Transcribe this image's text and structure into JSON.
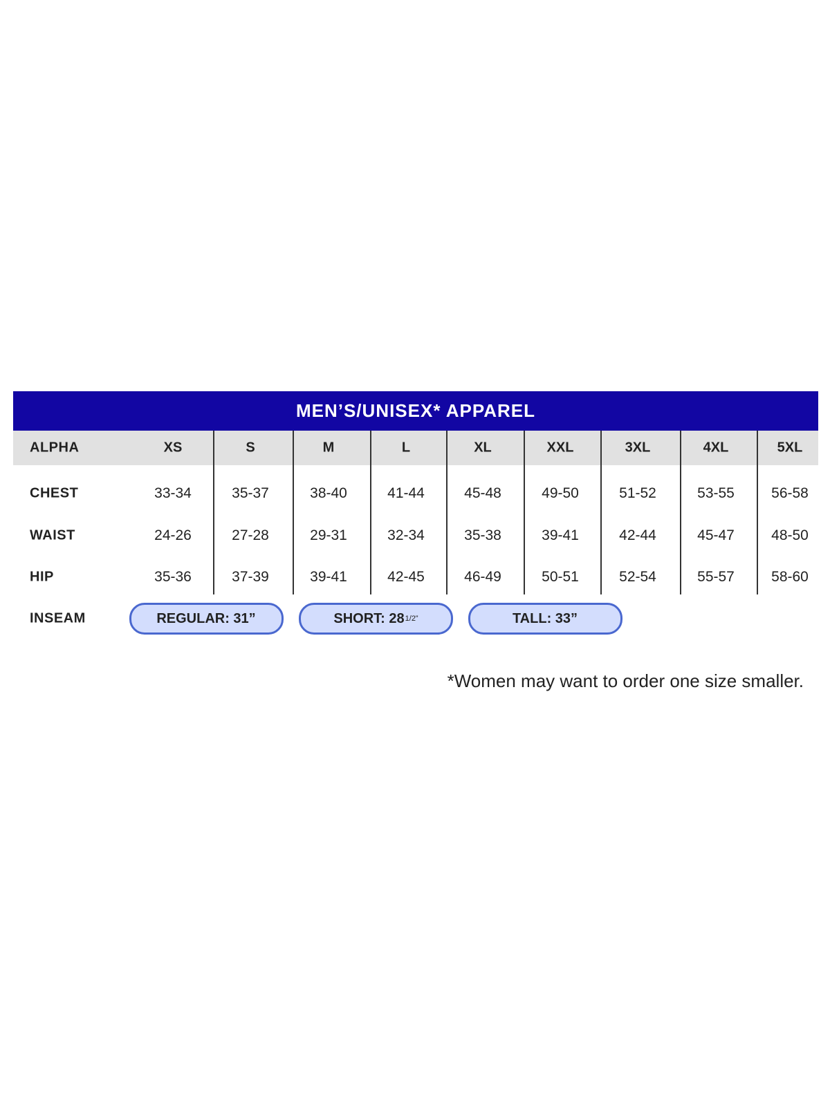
{
  "title": "MEN’S/UNISEX* APPAREL",
  "columns": [
    "XS",
    "S",
    "M",
    "L",
    "XL",
    "XXL",
    "3XL",
    "4XL",
    "5XL"
  ],
  "header_label": "ALPHA",
  "rows": [
    {
      "label": "CHEST",
      "values": [
        "33-34",
        "35-37",
        "38-40",
        "41-44",
        "45-48",
        "49-50",
        "51-52",
        "53-55",
        "56-58"
      ]
    },
    {
      "label": "WAIST",
      "values": [
        "24-26",
        "27-28",
        "29-31",
        "32-34",
        "35-38",
        "39-41",
        "42-44",
        "45-47",
        "48-50"
      ]
    },
    {
      "label": "HIP",
      "values": [
        "35-36",
        "37-39",
        "39-41",
        "42-45",
        "46-49",
        "50-51",
        "52-54",
        "55-57",
        "58-60"
      ]
    }
  ],
  "inseam": {
    "label": "INSEAM",
    "options": [
      {
        "text": "REGULAR: 31”",
        "sup": ""
      },
      {
        "text": "SHORT: 28",
        "sup": "1/2”"
      },
      {
        "text": "TALL: 33”",
        "sup": ""
      }
    ]
  },
  "footnote": "*Women may want to order one size smaller.",
  "colors": {
    "banner": "#1206a3",
    "header_row": "#e1e1e1",
    "pill_fill": "#d3ddfd",
    "pill_border": "#4a68cf"
  }
}
